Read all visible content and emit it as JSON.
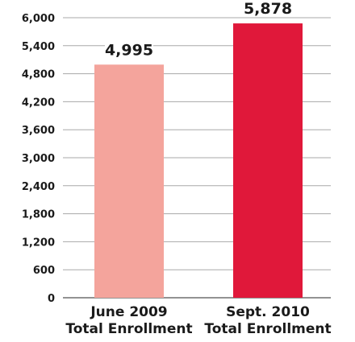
{
  "chart_data": {
    "type": "bar",
    "categories": [
      [
        "June 2009",
        "Total Enrollment"
      ],
      [
        "Sept. 2010",
        "Total Enrollment"
      ]
    ],
    "values": [
      4995,
      5878
    ],
    "value_labels": [
      "4,995",
      "5,878"
    ],
    "bar_colors": [
      "#f4a49c",
      "#e0183a"
    ],
    "ylim": [
      0,
      6000
    ],
    "yticks": [
      0,
      600,
      1200,
      1800,
      2400,
      3000,
      3600,
      4200,
      4800,
      5400,
      6000
    ],
    "ytick_labels": [
      "0",
      "600",
      "1,200",
      "1,800",
      "2,400",
      "3,000",
      "3,600",
      "4,200",
      "4,800",
      "5,400",
      "6,000"
    ],
    "grid": true,
    "legend": false
  }
}
